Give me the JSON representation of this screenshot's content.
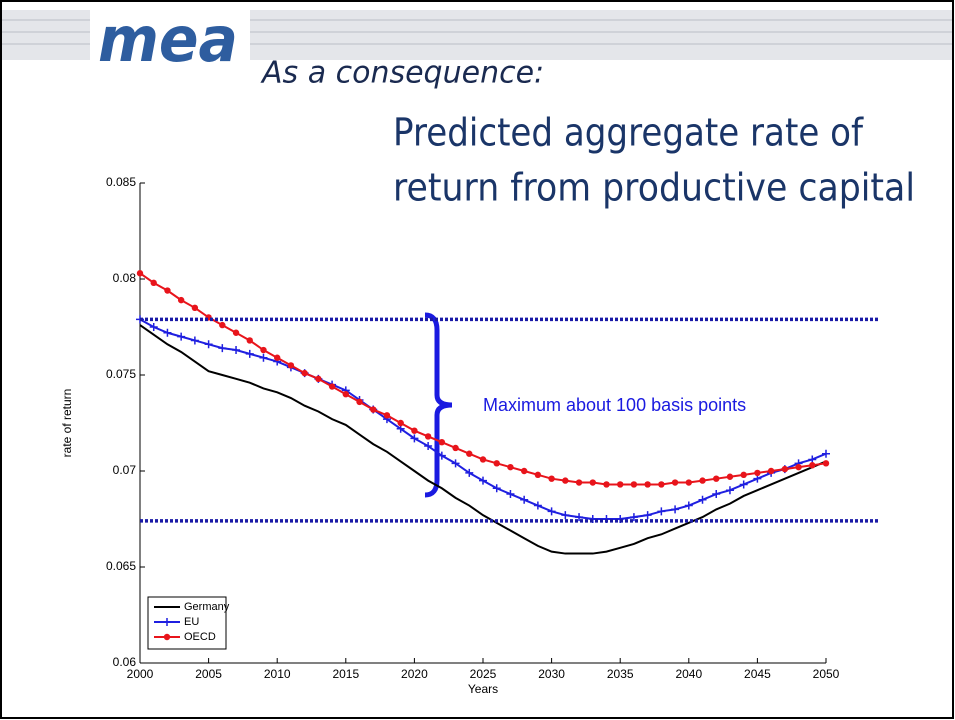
{
  "logo": "mea",
  "subtitle": "As a consequence:",
  "title": [
    "Predicted aggregate rate of",
    "return from productive capital"
  ],
  "chart_data": {
    "type": "line",
    "xlabel": "Years",
    "ylabel": "rate of return",
    "xlim": [
      2000,
      2050
    ],
    "ylim": [
      0.06,
      0.085
    ],
    "xticks": [
      2000,
      2005,
      2010,
      2015,
      2020,
      2025,
      2030,
      2035,
      2040,
      2045,
      2050
    ],
    "yticks": [
      0.06,
      0.065,
      0.07,
      0.075,
      0.08,
      0.085
    ],
    "legend": "lower left",
    "x": [
      2000,
      2001,
      2002,
      2003,
      2004,
      2005,
      2006,
      2007,
      2008,
      2009,
      2010,
      2011,
      2012,
      2013,
      2014,
      2015,
      2016,
      2017,
      2018,
      2019,
      2020,
      2021,
      2022,
      2023,
      2024,
      2025,
      2026,
      2027,
      2028,
      2029,
      2030,
      2031,
      2032,
      2033,
      2034,
      2035,
      2036,
      2037,
      2038,
      2039,
      2040,
      2041,
      2042,
      2043,
      2044,
      2045,
      2046,
      2047,
      2048,
      2049,
      2050
    ],
    "series": [
      {
        "name": "Germany",
        "color": "#000000",
        "marker": "none",
        "values": [
          0.0776,
          0.0771,
          0.0766,
          0.0762,
          0.0757,
          0.0752,
          0.075,
          0.0748,
          0.0746,
          0.0743,
          0.0741,
          0.0738,
          0.0734,
          0.0731,
          0.0727,
          0.0724,
          0.0719,
          0.0714,
          0.071,
          0.0705,
          0.07,
          0.0695,
          0.0691,
          0.0686,
          0.0682,
          0.0677,
          0.0673,
          0.0669,
          0.0665,
          0.0661,
          0.0658,
          0.0657,
          0.0657,
          0.0657,
          0.0658,
          0.066,
          0.0662,
          0.0665,
          0.0667,
          0.067,
          0.0673,
          0.0676,
          0.068,
          0.0683,
          0.0687,
          0.069,
          0.0693,
          0.0696,
          0.0699,
          0.0702,
          0.0705
        ]
      },
      {
        "name": "EU",
        "color": "#1f1fe0",
        "marker": "plus",
        "values": [
          0.0779,
          0.0775,
          0.0772,
          0.077,
          0.0768,
          0.0766,
          0.0764,
          0.0763,
          0.0761,
          0.0759,
          0.0757,
          0.0754,
          0.0751,
          0.0748,
          0.0745,
          0.0742,
          0.0737,
          0.0732,
          0.0727,
          0.0722,
          0.0717,
          0.0713,
          0.0708,
          0.0704,
          0.0699,
          0.0695,
          0.0691,
          0.0688,
          0.0685,
          0.0682,
          0.0679,
          0.0677,
          0.0676,
          0.0675,
          0.0675,
          0.0675,
          0.0676,
          0.0677,
          0.0679,
          0.068,
          0.0682,
          0.0685,
          0.0688,
          0.069,
          0.0693,
          0.0696,
          0.0699,
          0.0701,
          0.0704,
          0.0706,
          0.0709
        ]
      },
      {
        "name": "OECD",
        "color": "#e8141b",
        "marker": "circle",
        "values": [
          0.0803,
          0.0798,
          0.0794,
          0.0789,
          0.0785,
          0.078,
          0.0776,
          0.0772,
          0.0768,
          0.0763,
          0.0759,
          0.0755,
          0.0751,
          0.0748,
          0.0744,
          0.074,
          0.0736,
          0.0732,
          0.0729,
          0.0725,
          0.0721,
          0.0718,
          0.0715,
          0.0712,
          0.0709,
          0.0706,
          0.0704,
          0.0702,
          0.07,
          0.0698,
          0.0696,
          0.0695,
          0.0694,
          0.0694,
          0.0693,
          0.0693,
          0.0693,
          0.0693,
          0.0693,
          0.0694,
          0.0694,
          0.0695,
          0.0696,
          0.0697,
          0.0698,
          0.0699,
          0.07,
          0.0701,
          0.0702,
          0.0703,
          0.0704
        ]
      }
    ],
    "reference_lines": {
      "color": "#1a1aa6",
      "values": [
        0.0779,
        0.0674
      ]
    },
    "annotation": "Maximum about 100 basis points"
  }
}
